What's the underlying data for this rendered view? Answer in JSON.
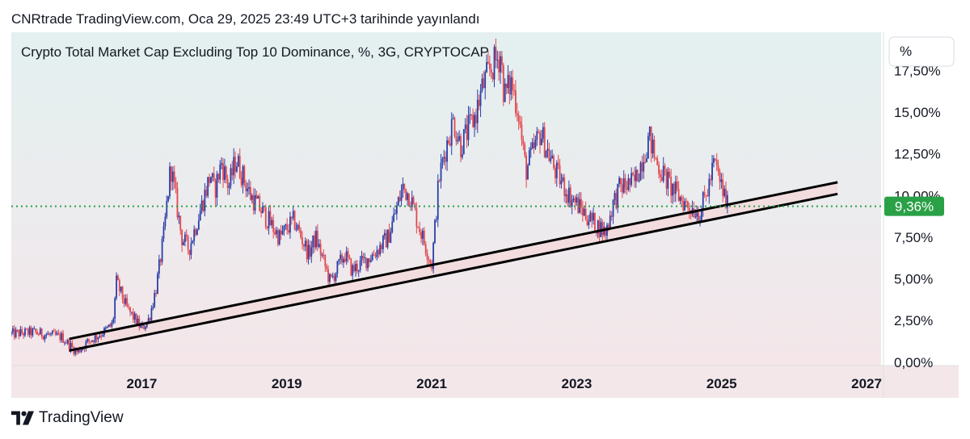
{
  "header": {
    "publish_line": "CNRtrade TradingView.com, Oca 29, 2025 23:49 UTC+3 tarihinde yayınlandı"
  },
  "footer": {
    "brand": "TradingView"
  },
  "colors": {
    "candle_up": "#2a3fa8",
    "candle_down": "#e2474f",
    "level_line": "#2aa147",
    "price_label_bg": "#2aa147",
    "channel_line": "#000000",
    "channel_fill": "#f2d9db"
  },
  "chart_data": {
    "type": "line",
    "title": "Crypto Total Market Cap Excluding Top 10 Dominance, %, 3G, CRYPTOCAP",
    "unit_button": "%",
    "ylim": [
      -0.2,
      19.8
    ],
    "yticks": [
      "0,00%",
      "2,50%",
      "5,00%",
      "7,50%",
      "10,00%",
      "12,50%",
      "15,00%",
      "17,50%"
    ],
    "ytick_values": [
      0,
      2.5,
      5,
      7.5,
      10,
      12.5,
      15,
      17.5
    ],
    "xlim": [
      2015.2,
      2027.2
    ],
    "xticks": [
      "2017",
      "2019",
      "2021",
      "2023",
      "2025",
      "2027"
    ],
    "xtick_values": [
      2017,
      2019,
      2021,
      2023,
      2025,
      2027
    ],
    "current_value": 9.36,
    "current_label": "9,36%",
    "series": [
      {
        "name": "Dominance",
        "x": [
          2015.2,
          2015.5,
          2015.9,
          2016.1,
          2016.25,
          2016.5,
          2016.6,
          2016.65,
          2016.8,
          2017.0,
          2017.1,
          2017.2,
          2017.3,
          2017.4,
          2017.55,
          2017.65,
          2017.8,
          2017.95,
          2018.0,
          2018.1,
          2018.2,
          2018.3,
          2018.5,
          2018.7,
          2018.9,
          2019.1,
          2019.3,
          2019.4,
          2019.6,
          2019.8,
          2019.9,
          2020.2,
          2020.4,
          2020.6,
          2020.7,
          2020.8,
          2020.95,
          2021.0,
          2021.1,
          2021.2,
          2021.3,
          2021.4,
          2021.6,
          2021.7,
          2021.8,
          2021.95,
          2022.0,
          2022.1,
          2022.2,
          2022.25,
          2022.3,
          2022.5,
          2022.7,
          2022.9,
          2023.0,
          2023.2,
          2023.4,
          2023.5,
          2023.6,
          2023.8,
          2024.0,
          2024.1,
          2024.3,
          2024.5,
          2024.7,
          2024.8,
          2024.9,
          2025.0,
          2025.08
        ],
        "y": [
          1.7,
          1.8,
          1.5,
          0.6,
          1.2,
          1.9,
          2.3,
          4.8,
          3.2,
          2.0,
          2.6,
          4.5,
          7.5,
          11.8,
          7.5,
          6.8,
          9.0,
          11.3,
          10.2,
          12.0,
          10.5,
          12.2,
          10.0,
          8.8,
          7.5,
          8.5,
          6.5,
          7.5,
          4.8,
          6.5,
          5.5,
          6.5,
          7.5,
          10.5,
          10.0,
          8.5,
          6.5,
          5.8,
          11.0,
          13.0,
          14.5,
          13.0,
          14.8,
          16.5,
          17.5,
          18.5,
          16.0,
          16.8,
          15.0,
          13.0,
          11.5,
          13.8,
          11.5,
          10.0,
          9.5,
          8.5,
          7.8,
          9.5,
          10.5,
          10.8,
          13.5,
          12.0,
          10.5,
          9.5,
          9.0,
          10.2,
          12.0,
          10.5,
          9.36
        ]
      }
    ],
    "channel": {
      "upper": {
        "x": [
          2016.0,
          2026.6
        ],
        "y": [
          1.4,
          10.8
        ]
      },
      "lower": {
        "x": [
          2016.0,
          2026.6
        ],
        "y": [
          0.7,
          10.1
        ]
      }
    }
  }
}
